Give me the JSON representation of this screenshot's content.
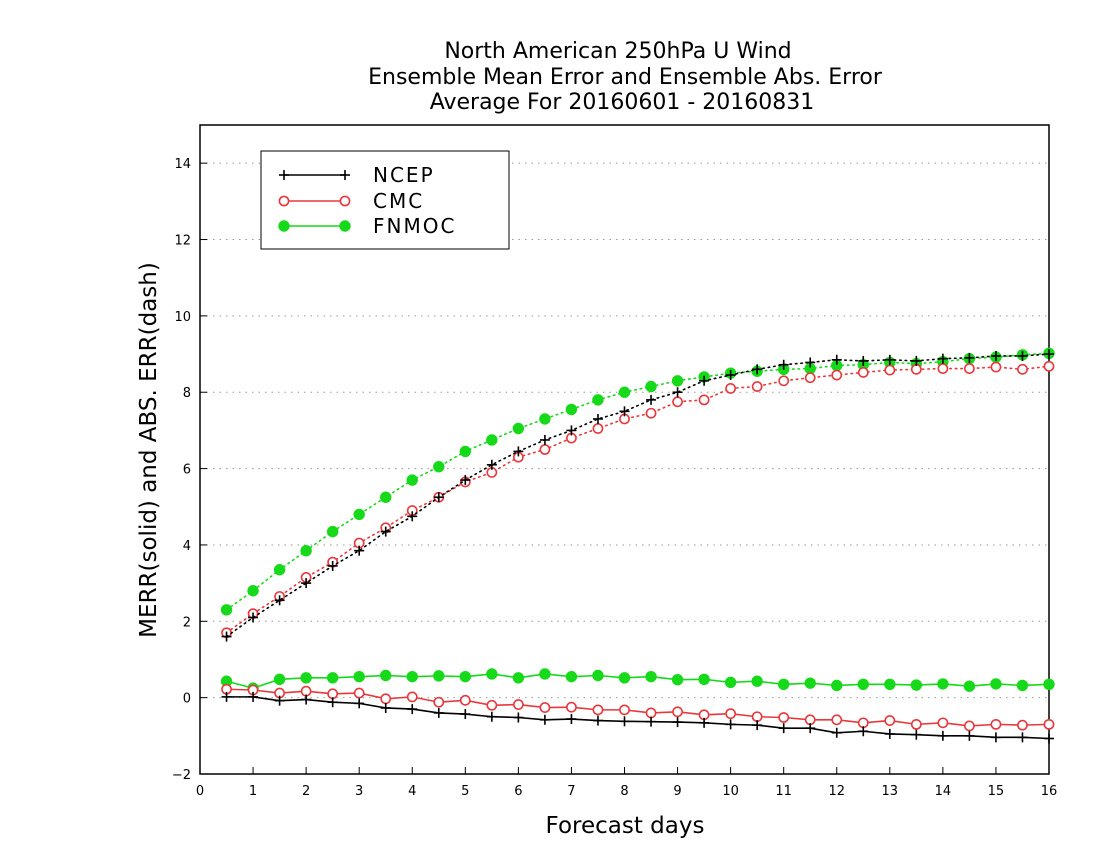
{
  "chart_data": {
    "type": "line",
    "title_lines": [
      "North American 250hPa U Wind",
      "Ensemble Mean Error and Ensemble Abs. Error",
      "Average For 20160601 - 20160831"
    ],
    "xlabel": "Forecast days",
    "ylabel": "MERR(solid) and ABS. ERR(dash)",
    "xlim": [
      0,
      16
    ],
    "ylim": [
      -2,
      15
    ],
    "xticks": [
      0,
      1,
      2,
      3,
      4,
      5,
      6,
      7,
      8,
      9,
      10,
      11,
      12,
      13,
      14,
      15,
      16
    ],
    "yticks": [
      -2,
      0,
      2,
      4,
      6,
      8,
      10,
      12,
      14
    ],
    "grid": "horizontal dotted",
    "legend_position": "top-left",
    "x": [
      0.5,
      1,
      1.5,
      2,
      2.5,
      3,
      3.5,
      4,
      4.5,
      5,
      5.5,
      6,
      6.5,
      7,
      7.5,
      8,
      8.5,
      9,
      9.5,
      10,
      10.5,
      11,
      11.5,
      12,
      12.5,
      13,
      13.5,
      14,
      14.5,
      15,
      15.5,
      16
    ],
    "series": [
      {
        "name": "NCEP",
        "color": "#000000",
        "marker": "plus",
        "merr": [
          0.02,
          0.02,
          -0.08,
          -0.05,
          -0.12,
          -0.15,
          -0.27,
          -0.3,
          -0.4,
          -0.43,
          -0.5,
          -0.52,
          -0.58,
          -0.56,
          -0.6,
          -0.62,
          -0.63,
          -0.64,
          -0.66,
          -0.7,
          -0.72,
          -0.8,
          -0.8,
          -0.92,
          -0.88,
          -0.95,
          -0.97,
          -1.0,
          -1.0,
          -1.04,
          -1.04,
          -1.07
        ],
        "abs_err": [
          1.6,
          2.1,
          2.55,
          3.0,
          3.45,
          3.85,
          4.35,
          4.75,
          5.25,
          5.7,
          6.1,
          6.45,
          6.75,
          7.0,
          7.3,
          7.5,
          7.8,
          8.0,
          8.3,
          8.45,
          8.6,
          8.72,
          8.78,
          8.85,
          8.82,
          8.85,
          8.82,
          8.88,
          8.9,
          8.95,
          8.95,
          9.0
        ]
      },
      {
        "name": "CMC",
        "color": "#e8383d",
        "marker": "open-circle",
        "merr": [
          0.22,
          0.2,
          0.12,
          0.17,
          0.1,
          0.12,
          -0.03,
          0.02,
          -0.12,
          -0.07,
          -0.2,
          -0.18,
          -0.26,
          -0.25,
          -0.32,
          -0.32,
          -0.4,
          -0.37,
          -0.45,
          -0.42,
          -0.5,
          -0.52,
          -0.58,
          -0.58,
          -0.66,
          -0.6,
          -0.7,
          -0.66,
          -0.74,
          -0.7,
          -0.72,
          -0.7
        ],
        "abs_err": [
          1.7,
          2.2,
          2.65,
          3.15,
          3.55,
          4.05,
          4.45,
          4.9,
          5.25,
          5.65,
          5.9,
          6.3,
          6.5,
          6.8,
          7.05,
          7.3,
          7.45,
          7.75,
          7.8,
          8.1,
          8.15,
          8.3,
          8.38,
          8.45,
          8.52,
          8.58,
          8.6,
          8.62,
          8.62,
          8.66,
          8.6,
          8.68
        ]
      },
      {
        "name": "FNMOC",
        "color": "#16d91a",
        "marker": "filled-circle",
        "merr": [
          0.43,
          0.25,
          0.48,
          0.52,
          0.52,
          0.55,
          0.58,
          0.55,
          0.57,
          0.55,
          0.62,
          0.52,
          0.62,
          0.55,
          0.58,
          0.52,
          0.55,
          0.47,
          0.48,
          0.4,
          0.43,
          0.35,
          0.38,
          0.32,
          0.35,
          0.35,
          0.33,
          0.36,
          0.3,
          0.36,
          0.32,
          0.35
        ],
        "abs_err": [
          2.3,
          2.8,
          3.35,
          3.85,
          4.35,
          4.8,
          5.25,
          5.7,
          6.05,
          6.45,
          6.75,
          7.05,
          7.3,
          7.55,
          7.8,
          8.0,
          8.15,
          8.3,
          8.4,
          8.5,
          8.55,
          8.6,
          8.62,
          8.7,
          8.72,
          8.78,
          8.75,
          8.8,
          8.88,
          8.92,
          8.98,
          9.02
        ]
      }
    ]
  }
}
